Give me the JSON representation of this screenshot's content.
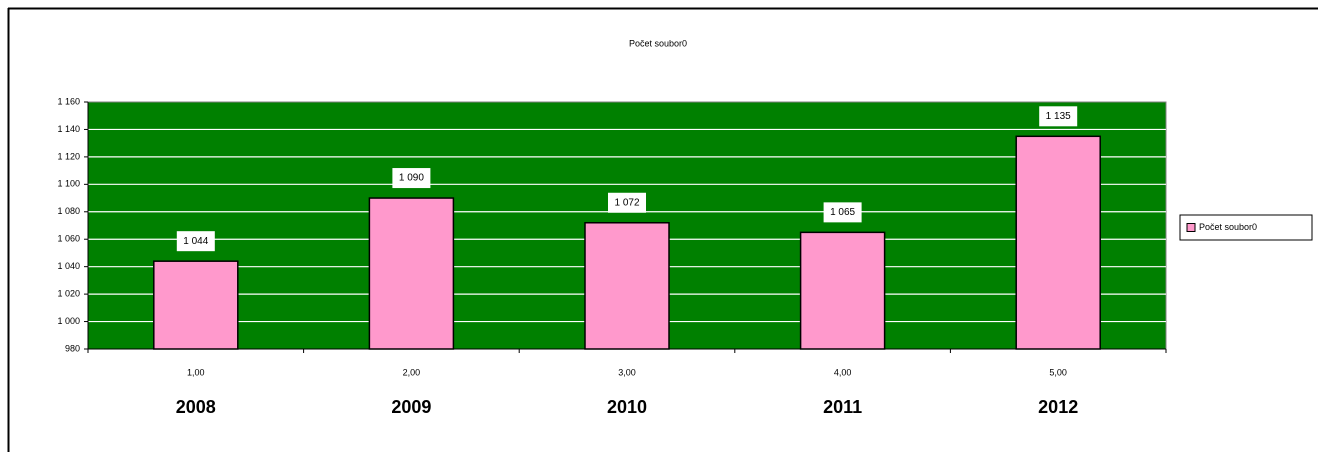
{
  "chart_data": {
    "type": "bar",
    "title": "Počet soubor0",
    "categories": [
      "1,00",
      "2,00",
      "3,00",
      "4,00",
      "5,00"
    ],
    "x_sublabels": [
      "2008",
      "2009",
      "2010",
      "2011",
      "2012"
    ],
    "series": [
      {
        "name": "Počet soubor0",
        "color": "#ff99cc",
        "values": [
          1044,
          1090,
          1072,
          1065,
          1135
        ],
        "value_labels": [
          "1 044",
          "1 090",
          "1 072",
          "1 065",
          "1 135"
        ]
      }
    ],
    "ylim": [
      980,
      1160
    ],
    "yticks": [
      980,
      {
        "value": 1000,
        "label": "1 000"
      },
      {
        "value": 1020,
        "label": "1 020"
      },
      {
        "value": 1040,
        "label": "1 040"
      },
      {
        "value": 1060,
        "label": "1 060"
      },
      {
        "value": 1080,
        "label": "1 080"
      },
      {
        "value": 1100,
        "label": "1 100"
      },
      {
        "value": 1120,
        "label": "1 120"
      },
      {
        "value": 1140,
        "label": "1 140"
      },
      {
        "value": 1160,
        "label": "1 160"
      }
    ],
    "grid": true,
    "plot_background": "#008000",
    "legend": "right"
  }
}
